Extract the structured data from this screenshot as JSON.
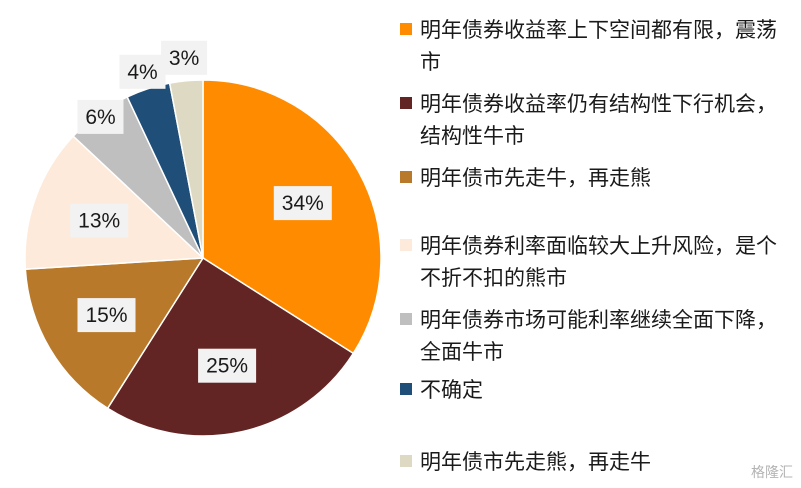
{
  "chart_data": {
    "type": "pie",
    "slices": [
      {
        "label": "明年债券收益率上下空间都有限，震荡市",
        "value": 34,
        "display": "34%",
        "color": "#FF8C00"
      },
      {
        "label": "明年债券收益率仍有结构性下行机会，结构性牛市",
        "value": 25,
        "display": "25%",
        "color": "#632523"
      },
      {
        "label": "明年债市先走牛，再走熊",
        "value": 15,
        "display": "15%",
        "color": "#B8792A"
      },
      {
        "label": "明年债券利率面临较大上升风险，是个不折不扣的熊市",
        "value": 13,
        "display": "13%",
        "color": "#FDEADA"
      },
      {
        "label": "明年债券市场可能利率继续全面下降，全面牛市",
        "value": 6,
        "display": "6%",
        "color": "#BFBFBF"
      },
      {
        "label": "不确定",
        "value": 4,
        "display": "4%",
        "color": "#1F4E79"
      },
      {
        "label": "明年债市先走熊，再走牛",
        "value": 3,
        "display": "3%",
        "color": "#DDD9C3"
      }
    ],
    "legend_position": "right"
  },
  "watermark": "格隆汇"
}
